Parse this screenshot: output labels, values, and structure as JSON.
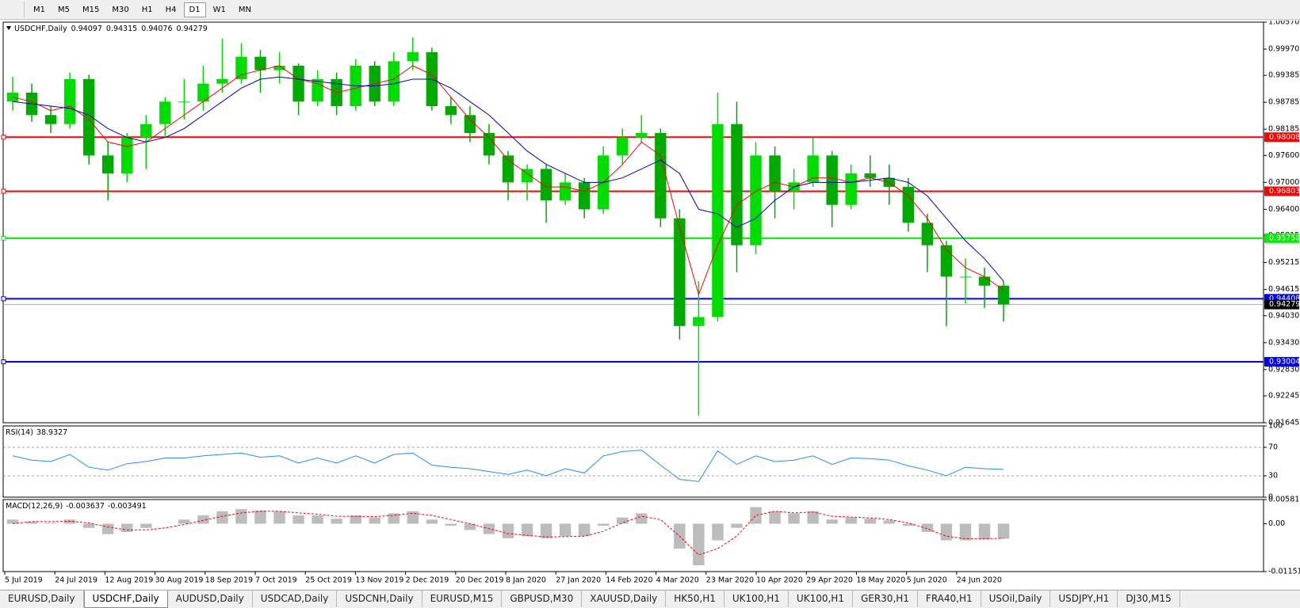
{
  "toolbar": {
    "timeframes": [
      "M1",
      "M5",
      "M15",
      "M30",
      "H1",
      "H4",
      "D1",
      "W1",
      "MN"
    ],
    "active": 6
  },
  "chart_data": [
    {
      "type": "candlestick",
      "title": "USDCHF,Daily",
      "ohlc": [
        0.94097,
        0.94315,
        0.94076,
        0.94279
      ],
      "up_color": "#00dd00",
      "down_color": "#00aa00",
      "ylim": [
        0.91645,
        1.0057
      ],
      "yticks": [
        {
          "value": 1.0057,
          "label": "1.00570"
        },
        {
          "value": 0.9997,
          "label": "0.99970"
        },
        0.99385,
        0.98785,
        0.98185,
        {
          "value": 0.976,
          "label": "0.97600"
        },
        {
          "value": 0.97,
          "label": "0.97000"
        },
        {
          "value": 0.964,
          "label": "0.96400"
        },
        0.95815,
        0.95215,
        0.94615,
        {
          "value": 0.9403,
          "label": "0.94030"
        },
        {
          "value": 0.9343,
          "label": "0.93430"
        },
        {
          "value": 0.9283,
          "label": "0.92830"
        },
        0.92245,
        0.91645
      ],
      "xlabels": [
        "5 Jul 2019",
        "24 Jul 2019",
        "12 Aug 2019",
        "30 Aug 2019",
        "18 Sep 2019",
        "7 Oct 2019",
        "25 Oct 2019",
        "13 Nov 2019",
        "2 Dec 2019",
        "20 Dec 2019",
        "8 Jan 2020",
        "27 Jan 2020",
        "14 Feb 2020",
        "4 Mar 2020",
        "23 Mar 2020",
        "10 Apr 2020",
        "29 Apr 2020",
        "18 May 2020",
        "5 Jun 2020",
        "24 Jun 2020"
      ],
      "candles": [
        [
          0.988,
          0.9935,
          0.986,
          0.99
        ],
        [
          0.99,
          0.992,
          0.9835,
          0.985
        ],
        [
          0.985,
          0.987,
          0.981,
          0.983
        ],
        [
          0.983,
          0.9945,
          0.982,
          0.993
        ],
        [
          0.993,
          0.994,
          0.974,
          0.976
        ],
        [
          0.976,
          0.979,
          0.966,
          0.972
        ],
        [
          0.972,
          0.981,
          0.97,
          0.98
        ],
        [
          0.98,
          0.985,
          0.973,
          0.983
        ],
        [
          0.983,
          0.989,
          0.98,
          0.988
        ],
        [
          0.988,
          0.993,
          0.984,
          0.988
        ],
        [
          0.988,
          0.996,
          0.986,
          0.992
        ],
        [
          0.992,
          1.002,
          0.99,
          0.993
        ],
        [
          0.993,
          1.001,
          0.992,
          0.998
        ],
        [
          0.998,
          0.9995,
          0.99,
          0.995
        ],
        [
          0.995,
          0.999,
          0.992,
          0.996
        ],
        [
          0.996,
          0.9965,
          0.985,
          0.988
        ],
        [
          0.988,
          0.995,
          0.987,
          0.993
        ],
        [
          0.993,
          0.9945,
          0.985,
          0.987
        ],
        [
          0.987,
          0.9975,
          0.986,
          0.996
        ],
        [
          0.996,
          0.997,
          0.987,
          0.988
        ],
        [
          0.988,
          0.999,
          0.987,
          0.997
        ],
        [
          0.997,
          1.0023,
          0.995,
          0.999
        ],
        [
          0.999,
          1.0,
          0.986,
          0.987
        ],
        [
          0.987,
          0.989,
          0.983,
          0.985
        ],
        [
          0.985,
          0.987,
          0.979,
          0.981
        ],
        [
          0.981,
          0.983,
          0.974,
          0.976
        ],
        [
          0.976,
          0.977,
          0.966,
          0.97
        ],
        [
          0.97,
          0.974,
          0.966,
          0.973
        ],
        [
          0.973,
          0.974,
          0.961,
          0.966
        ],
        [
          0.966,
          0.972,
          0.965,
          0.97
        ],
        [
          0.97,
          0.971,
          0.962,
          0.964
        ],
        [
          0.964,
          0.978,
          0.963,
          0.976
        ],
        [
          0.976,
          0.982,
          0.974,
          0.98
        ],
        [
          0.98,
          0.985,
          0.979,
          0.981
        ],
        [
          0.981,
          0.982,
          0.96,
          0.962
        ],
        [
          0.962,
          0.964,
          0.935,
          0.938
        ],
        [
          0.938,
          0.948,
          0.918,
          0.94
        ],
        [
          0.94,
          0.99,
          0.939,
          0.983
        ],
        [
          0.983,
          0.988,
          0.95,
          0.956
        ],
        [
          0.956,
          0.979,
          0.954,
          0.976
        ],
        [
          0.976,
          0.978,
          0.962,
          0.968
        ],
        [
          0.968,
          0.973,
          0.964,
          0.97
        ],
        [
          0.97,
          0.98,
          0.969,
          0.976
        ],
        [
          0.976,
          0.977,
          0.96,
          0.965
        ],
        [
          0.965,
          0.974,
          0.964,
          0.972
        ],
        [
          0.972,
          0.976,
          0.969,
          0.971
        ],
        [
          0.971,
          0.974,
          0.965,
          0.969
        ],
        [
          0.969,
          0.971,
          0.959,
          0.961
        ],
        [
          0.961,
          0.963,
          0.95,
          0.956
        ],
        [
          0.956,
          0.957,
          0.938,
          0.949
        ],
        [
          0.949,
          0.953,
          0.943,
          0.949
        ],
        [
          0.949,
          0.951,
          0.942,
          0.947
        ],
        [
          0.947,
          0.948,
          0.939,
          0.9428
        ]
      ],
      "series": [
        {
          "color": "#ff0000",
          "values": [
            0.989,
            0.988,
            0.986,
            0.987,
            0.984,
            0.979,
            0.978,
            0.979,
            0.982,
            0.985,
            0.988,
            0.991,
            0.994,
            0.995,
            0.996,
            0.993,
            0.992,
            0.99,
            0.991,
            0.992,
            0.993,
            0.996,
            0.994,
            0.989,
            0.984,
            0.98,
            0.975,
            0.972,
            0.969,
            0.969,
            0.968,
            0.97,
            0.974,
            0.979,
            0.976,
            0.96,
            0.945,
            0.956,
            0.965,
            0.968,
            0.97,
            0.969,
            0.971,
            0.971,
            0.97,
            0.971,
            0.97,
            0.967,
            0.962,
            0.955,
            0.951,
            0.949,
            0.946
          ]
        },
        {
          "color": "#0000cc",
          "values": [
            0.988,
            0.9875,
            0.987,
            0.9865,
            0.985,
            0.982,
            0.98,
            0.979,
            0.98,
            0.982,
            0.985,
            0.988,
            0.991,
            0.993,
            0.9935,
            0.993,
            0.9925,
            0.992,
            0.9915,
            0.9915,
            0.992,
            0.993,
            0.993,
            0.991,
            0.988,
            0.985,
            0.981,
            0.977,
            0.974,
            0.972,
            0.97,
            0.97,
            0.971,
            0.973,
            0.975,
            0.972,
            0.964,
            0.963,
            0.96,
            0.962,
            0.966,
            0.969,
            0.97,
            0.97,
            0.97,
            0.9705,
            0.971,
            0.97,
            0.967,
            0.962,
            0.957,
            0.953,
            0.948
          ]
        }
      ],
      "levels": [
        {
          "value": 0.98008,
          "color": "#ff0000"
        },
        {
          "value": 0.96803,
          "color": "#ff0000"
        },
        {
          "value": 0.95758,
          "color": "#00ee00"
        },
        {
          "value": 0.94408,
          "color": "#0000ff"
        },
        {
          "value": 0.93004,
          "color": "#0000ff"
        }
      ],
      "last": 0.94279
    },
    {
      "type": "line",
      "title": "RSI(14)",
      "last_value": 38.9327,
      "color": "#1e90ff",
      "ylim": [
        0,
        100
      ],
      "yticks": [
        100,
        70,
        30,
        0
      ],
      "levels": [
        70,
        30
      ],
      "values": [
        58,
        52,
        50,
        60,
        42,
        38,
        47,
        50,
        55,
        55,
        58,
        60,
        62,
        56,
        58,
        48,
        55,
        48,
        58,
        48,
        60,
        62,
        45,
        42,
        40,
        36,
        32,
        38,
        30,
        40,
        34,
        58,
        64,
        66,
        45,
        25,
        22,
        65,
        46,
        58,
        50,
        52,
        58,
        46,
        55,
        54,
        52,
        44,
        38,
        30,
        42,
        40,
        39
      ]
    },
    {
      "type": "macd",
      "title": "MACD(12,26,9)",
      "main_value": -0.003637,
      "signal_value": -0.003491,
      "ylim": [
        -0.011514,
        0.005818
      ],
      "yticks": [
        0.005818,
        {
          "value": 0,
          "label": "0.00"
        },
        -0.011514
      ],
      "hist_color": "#a0a0a0",
      "signal_color": "#ff0000",
      "values": [
        0.001,
        0.0005,
        0.0002,
        0.001,
        -0.001,
        -0.0025,
        -0.002,
        -0.001,
        0,
        0.001,
        0.002,
        0.003,
        0.0035,
        0.0032,
        0.003,
        0.002,
        0.002,
        0.0012,
        0.002,
        0.0015,
        0.0025,
        0.003,
        0.001,
        -0.0005,
        -0.0015,
        -0.0025,
        -0.0035,
        -0.003,
        -0.0035,
        -0.003,
        -0.003,
        -0.0005,
        0.0015,
        0.0025,
        0,
        -0.006,
        -0.01,
        -0.004,
        -0.001,
        0.004,
        0.003,
        0.0025,
        0.003,
        0.001,
        0.0015,
        0.0012,
        0.0008,
        -0.0005,
        -0.002,
        -0.004,
        -0.004,
        -0.0038,
        -0.0036
      ],
      "signal": [
        0,
        0.0005,
        0.0005,
        0.0006,
        0.0002,
        -0.0008,
        -0.0015,
        -0.0015,
        -0.001,
        -0.0002,
        0.0008,
        0.0018,
        0.0026,
        0.003,
        0.003,
        0.0026,
        0.0023,
        0.0018,
        0.0018,
        0.0017,
        0.002,
        0.0025,
        0.002,
        0.001,
        0,
        -0.0012,
        -0.0024,
        -0.0028,
        -0.0032,
        -0.0031,
        -0.003,
        -0.0018,
        0.0002,
        0.0018,
        0.001,
        -0.003,
        -0.0075,
        -0.006,
        -0.003,
        0.002,
        0.003,
        0.0026,
        0.0028,
        0.0018,
        0.0016,
        0.0014,
        0.001,
        0.0002,
        -0.0012,
        -0.003,
        -0.0036,
        -0.0036,
        -0.0035
      ]
    }
  ],
  "tabs": [
    "EURUSD,Daily",
    "USDCHF,Daily",
    "AUDUSD,Daily",
    "USDCAD,Daily",
    "USDCNH,Daily",
    "EURUSD,M15",
    "GBPUSD,M30",
    "XAUUSD,Daily",
    "HK50,H1",
    "UK100,H1",
    "UK100,H1",
    "GER30,H1",
    "FRA40,H1",
    "USOil,Daily",
    "USDJPY,H1",
    "DJ30,M15"
  ],
  "active_tab": 1
}
